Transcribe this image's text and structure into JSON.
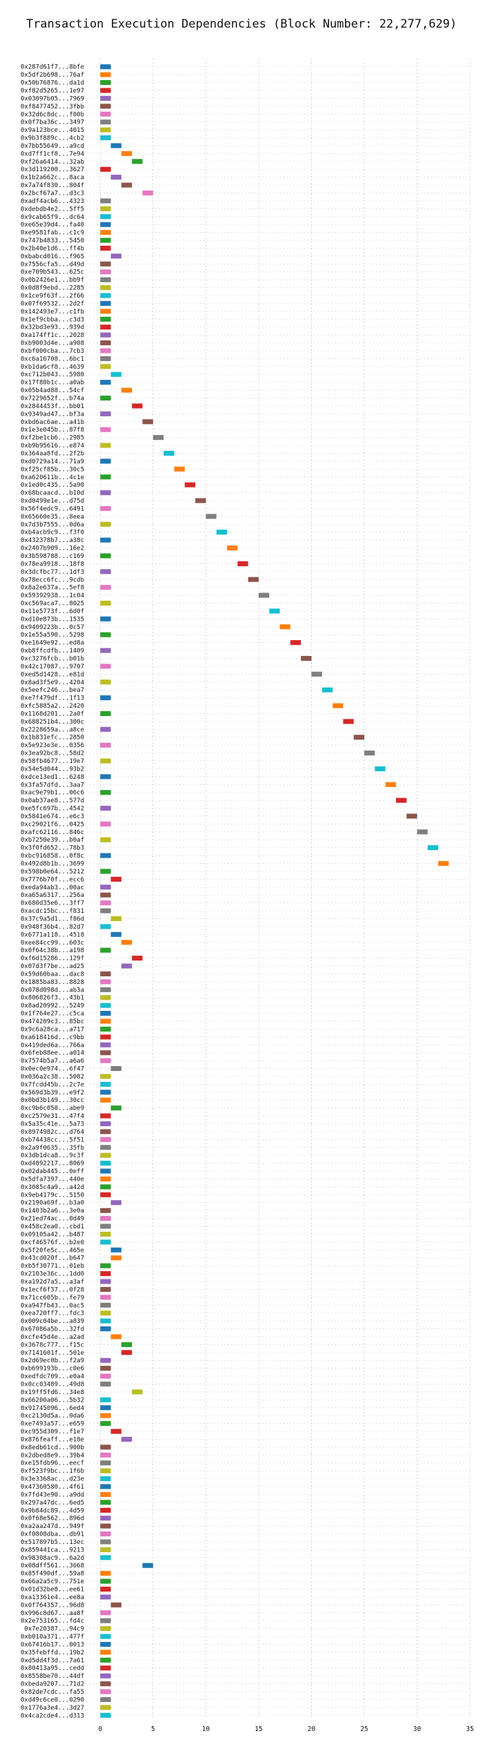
{
  "chart_data": {
    "type": "gantt",
    "title": "Transaction Execution Dependencies (Block Number: 22,277,629)",
    "xlabel": "",
    "ylabel": "",
    "xlim": [
      -1,
      35
    ],
    "xticks": [
      0,
      5,
      10,
      15,
      20,
      25,
      30,
      35
    ],
    "grid": true,
    "grid_style": "dotted",
    "bar_duration": 1,
    "palette": [
      "#1f77b4",
      "#ff7f0e",
      "#2ca02c",
      "#d62728",
      "#9467bd",
      "#8c564b",
      "#e377c2",
      "#7f7f7f",
      "#bcbd22",
      "#17becf"
    ],
    "transactions": [
      {
        "label": "0x287d61f7...8bfe",
        "start": 0
      },
      {
        "label": "0x5df2b698...76af",
        "start": 0
      },
      {
        "label": "0x50b76876...da1d",
        "start": 0
      },
      {
        "label": "0xf82d5265...1e97",
        "start": 0
      },
      {
        "label": "0x03097b05...7969",
        "start": 0
      },
      {
        "label": "0xf8477452...3fbb",
        "start": 0
      },
      {
        "label": "0x32d6c8dc...f00b",
        "start": 0
      },
      {
        "label": "0x0f7ba36c...3497",
        "start": 0
      },
      {
        "label": "0x9a123bce...4015",
        "start": 0
      },
      {
        "label": "0x9b3f889c...4cb2",
        "start": 0
      },
      {
        "label": "0x7bb55649...a9cd",
        "start": 1
      },
      {
        "label": "0xd7ff1cf8...7e94",
        "start": 2
      },
      {
        "label": "0xf26a6414...32ab",
        "start": 3
      },
      {
        "label": "0x3d119200...3627",
        "start": 0
      },
      {
        "label": "0x1b2a662c...8aca",
        "start": 1
      },
      {
        "label": "0x7a74f830...804f",
        "start": 2
      },
      {
        "label": "0x2bcf67a7...d3c3",
        "start": 4
      },
      {
        "label": "0xadf4acb6...4323",
        "start": 0
      },
      {
        "label": "0xdebdb4e2...5ff5",
        "start": 0
      },
      {
        "label": "0x9cab65f9...dc64",
        "start": 0
      },
      {
        "label": "0xe65e39d4...fa40",
        "start": 0
      },
      {
        "label": "0xe9581fab...c1c9",
        "start": 0
      },
      {
        "label": "0x747b4833...5450",
        "start": 0
      },
      {
        "label": "0x2b40e1d6...ff4b",
        "start": 0
      },
      {
        "label": "0xbabcd016...f965",
        "start": 1
      },
      {
        "label": "0x7556cfa5...d49d",
        "start": 0
      },
      {
        "label": "0xe709b543...625c",
        "start": 0
      },
      {
        "label": "0x0b2426e1...bb9f",
        "start": 0
      },
      {
        "label": "0x0d8f9ebd...2285",
        "start": 0
      },
      {
        "label": "0x1ce9f63f...2f66",
        "start": 0
      },
      {
        "label": "0x07f69532...2d2f",
        "start": 0
      },
      {
        "label": "0x142493e7...c1fb",
        "start": 0
      },
      {
        "label": "0x1ef9cbba...c3d3",
        "start": 0
      },
      {
        "label": "0x32bd3e93...939d",
        "start": 0
      },
      {
        "label": "0xa174ff1c...2028",
        "start": 0
      },
      {
        "label": "0xb9003d4e...a908",
        "start": 0
      },
      {
        "label": "0xbf000cba...7cb3",
        "start": 0
      },
      {
        "label": "0xc6a16708...6bc1",
        "start": 0
      },
      {
        "label": "0xb1da6cf8...4639",
        "start": 0
      },
      {
        "label": "0xc712b043...5980",
        "start": 1
      },
      {
        "label": "0x17f80b1c...a0ab",
        "start": 0
      },
      {
        "label": "0x05b4ad88...54cf",
        "start": 2
      },
      {
        "label": "0x7229652f...b74a",
        "start": 0
      },
      {
        "label": "0x2844453f...bb01",
        "start": 3
      },
      {
        "label": "0x9349ad47...bf3a",
        "start": 0
      },
      {
        "label": "0xbd6ac6ae...a41b",
        "start": 4
      },
      {
        "label": "0x1e3e045b...87f8",
        "start": 0
      },
      {
        "label": "0xf2be1cb6...2985",
        "start": 5
      },
      {
        "label": "0xb9b95616...e874",
        "start": 0
      },
      {
        "label": "0x364aa8fd...2f2b",
        "start": 6
      },
      {
        "label": "0xd0729a14...71a9",
        "start": 0
      },
      {
        "label": "0xf25cf85b...30c5",
        "start": 7
      },
      {
        "label": "0xa620611b...4c1e",
        "start": 0
      },
      {
        "label": "0x1ed0c435...5a90",
        "start": 8
      },
      {
        "label": "0x68bcaacd...b10d",
        "start": 0
      },
      {
        "label": "0xd0499e1e...d75d",
        "start": 9
      },
      {
        "label": "0x56f4edc9...6491",
        "start": 0
      },
      {
        "label": "0x65660e35...8eea",
        "start": 10
      },
      {
        "label": "0x7d3b7555...0d6a",
        "start": 0
      },
      {
        "label": "0xb4acb9c9...f3f0",
        "start": 11
      },
      {
        "label": "0x432378b7...a38c",
        "start": 0
      },
      {
        "label": "0x2407b909...16e2",
        "start": 12
      },
      {
        "label": "0x3b598788...c169",
        "start": 0
      },
      {
        "label": "0x78ea9918...18f8",
        "start": 13
      },
      {
        "label": "0x3dcfbc77...1df3",
        "start": 0
      },
      {
        "label": "0x78ecc6fc...9cdb",
        "start": 14
      },
      {
        "label": "0x8a2e637a...5ef8",
        "start": 0
      },
      {
        "label": "0x59392938...1c04",
        "start": 15
      },
      {
        "label": "0xc569aca7...8025",
        "start": 0
      },
      {
        "label": "0x11e5773f...6d0f",
        "start": 16
      },
      {
        "label": "0xd10e873b...1535",
        "start": 0
      },
      {
        "label": "0x9409223b...0c57",
        "start": 17
      },
      {
        "label": "0x1e55a590...5298",
        "start": 0
      },
      {
        "label": "0xe1649e92...ed8a",
        "start": 18
      },
      {
        "label": "0xb8ffcdfb...1409",
        "start": 0
      },
      {
        "label": "0xc3276fcb...b01b",
        "start": 19
      },
      {
        "label": "0x42c17087...9707",
        "start": 0
      },
      {
        "label": "0xed5d1428...e81d",
        "start": 20
      },
      {
        "label": "0x8ad3f5e9...4204",
        "start": 0
      },
      {
        "label": "0x5eefc246...bea7",
        "start": 21
      },
      {
        "label": "0xe7f479df...1f13",
        "start": 0
      },
      {
        "label": "0xfc5885a2...2420",
        "start": 22
      },
      {
        "label": "0x1168d201...2a0f",
        "start": 0
      },
      {
        "label": "0x688251b4...300c",
        "start": 23
      },
      {
        "label": "0x2228659a...a8ce",
        "start": 0
      },
      {
        "label": "0x1b831efc...2850",
        "start": 24
      },
      {
        "label": "0x5e923e3e...0356",
        "start": 0
      },
      {
        "label": "0x3ea92bc8...58d2",
        "start": 25
      },
      {
        "label": "0x58fb4677...19e7",
        "start": 0
      },
      {
        "label": "0x54e5d044...93b2",
        "start": 26
      },
      {
        "label": "0xdce13ed1...6248",
        "start": 0
      },
      {
        "label": "0x3fa57dfd...3aa7",
        "start": 27
      },
      {
        "label": "0xac9e79b1...06c6",
        "start": 0
      },
      {
        "label": "0x0ab37ae8...577d",
        "start": 28
      },
      {
        "label": "0xe5fc697b...4542",
        "start": 0
      },
      {
        "label": "0x5841e674...e6c3",
        "start": 29
      },
      {
        "label": "0xc29021f6...0425",
        "start": 0
      },
      {
        "label": "0xafc62116...846c",
        "start": 30
      },
      {
        "label": "0xb7250e39...b0af",
        "start": 0
      },
      {
        "label": "0x3f0fd652...78b3",
        "start": 31
      },
      {
        "label": "0xbc916858...0f8c",
        "start": 0
      },
      {
        "label": "0x492d8b1b...3699",
        "start": 32
      },
      {
        "label": "0x598b0e64...5212",
        "start": 0
      },
      {
        "label": "0x7776b70f...ecc6",
        "start": 1
      },
      {
        "label": "0xeda94ab3...00ac",
        "start": 0
      },
      {
        "label": "0xa65a6317...256a",
        "start": 0
      },
      {
        "label": "0x680d35e6...3ff7",
        "start": 0
      },
      {
        "label": "0xacdc15bc...f831",
        "start": 0
      },
      {
        "label": "0x37c9a5d1...f86d",
        "start": 1
      },
      {
        "label": "0x948f36b4...82d7",
        "start": 0
      },
      {
        "label": "0x6771a118...4518",
        "start": 1
      },
      {
        "label": "0xee84cc99...603c",
        "start": 2
      },
      {
        "label": "0x0f64c38b...a198",
        "start": 0
      },
      {
        "label": "0xf6d15286...129f",
        "start": 3
      },
      {
        "label": "0x07d3f7be...ad25",
        "start": 2
      },
      {
        "label": "0x59d60baa...dac8",
        "start": 0
      },
      {
        "label": "0x1885ba83...8828",
        "start": 0
      },
      {
        "label": "0x078d098d...ab3a",
        "start": 0
      },
      {
        "label": "0x806826f3...43b1",
        "start": 0
      },
      {
        "label": "0x8ad20992...5249",
        "start": 0
      },
      {
        "label": "0x1f764e27...c5ca",
        "start": 0
      },
      {
        "label": "0x474209c3...85bc",
        "start": 0
      },
      {
        "label": "0x9c6a28ca...a717",
        "start": 0
      },
      {
        "label": "0xa618416d...c9bb",
        "start": 0
      },
      {
        "label": "0x419ded6a...766a",
        "start": 0
      },
      {
        "label": "0x6feb88ee...a014",
        "start": 0
      },
      {
        "label": "0x7574b5a7...a6a6",
        "start": 0
      },
      {
        "label": "0x0ec0e974...6f47",
        "start": 1
      },
      {
        "label": "0x036a2c38...5082",
        "start": 0
      },
      {
        "label": "0x7fcdd45b...2c7e",
        "start": 0
      },
      {
        "label": "0x569d3b39...e9f2",
        "start": 0
      },
      {
        "label": "0x0bd3b149...30cc",
        "start": 0
      },
      {
        "label": "0xc9b6c050...abe9",
        "start": 1
      },
      {
        "label": "0xc2579e31...47f4",
        "start": 0
      },
      {
        "label": "0x5a35c41e...5a73",
        "start": 0
      },
      {
        "label": "0x8974982c...d764",
        "start": 0
      },
      {
        "label": "0xb74438cc...5f51",
        "start": 0
      },
      {
        "label": "0x2a9f0635...35fb",
        "start": 0
      },
      {
        "label": "0x3db1dca8...9c3f",
        "start": 0
      },
      {
        "label": "0xd4892217...8069",
        "start": 0
      },
      {
        "label": "0x02dab445...0eff",
        "start": 0
      },
      {
        "label": "0x5dfa7397...440e",
        "start": 0
      },
      {
        "label": "0x3085c4a9...a42d",
        "start": 0
      },
      {
        "label": "0x9eb4179c...5150",
        "start": 0
      },
      {
        "label": "0x2190a69f...b3a0",
        "start": 1
      },
      {
        "label": "0x1403b2a6...3e0a",
        "start": 0
      },
      {
        "label": "0x21ed74ac...0d49",
        "start": 0
      },
      {
        "label": "0x458c2ea0...cbd1",
        "start": 0
      },
      {
        "label": "0x09105a42...b487",
        "start": 0
      },
      {
        "label": "0xcf46576f...b2e0",
        "start": 0
      },
      {
        "label": "0x5f20fe5c...465e",
        "start": 1
      },
      {
        "label": "0x43cd020f...b647",
        "start": 1
      },
      {
        "label": "0xb5f30771...01eb",
        "start": 0
      },
      {
        "label": "0x2103e36c...1dd0",
        "start": 0
      },
      {
        "label": "0xa192d7a5...a3af",
        "start": 0
      },
      {
        "label": "0x1ecf6f37...0f28",
        "start": 0
      },
      {
        "label": "0x71cc605b...fe79",
        "start": 0
      },
      {
        "label": "0xa947fb43...0ac5",
        "start": 0
      },
      {
        "label": "0xea720ff7...fdc3",
        "start": 0
      },
      {
        "label": "0x009c04be...a839",
        "start": 0
      },
      {
        "label": "0x67086a5b...32fd",
        "start": 0
      },
      {
        "label": "0xcfe45d4e...a2ad",
        "start": 1
      },
      {
        "label": "0x3678c777...f15c",
        "start": 2
      },
      {
        "label": "0x7141601f...501e",
        "start": 2
      },
      {
        "label": "0x2d69ec0b...f2a9",
        "start": 0
      },
      {
        "label": "0xb699193b...c0e6",
        "start": 0
      },
      {
        "label": "0xedfdc709...e0a4",
        "start": 0
      },
      {
        "label": "0x0cc03489...49d8",
        "start": 0
      },
      {
        "label": "0x19ff5fd6...34e8",
        "start": 3
      },
      {
        "label": "0x66200a06...5b32",
        "start": 0
      },
      {
        "label": "0x91745096...6ed4",
        "start": 0
      },
      {
        "label": "0xc2130d5a...0da6",
        "start": 0
      },
      {
        "label": "0xe7493a57...e659",
        "start": 0
      },
      {
        "label": "0xc955d309...f1e7",
        "start": 1
      },
      {
        "label": "0x876feaff...e18e",
        "start": 2
      },
      {
        "label": "0x8edb61cd...900b",
        "start": 0
      },
      {
        "label": "0x2dbed8e9...39b4",
        "start": 0
      },
      {
        "label": "0xe15fdb96...eecf",
        "start": 0
      },
      {
        "label": "0xf523f9bc...1f6b",
        "start": 0
      },
      {
        "label": "0x3e3368ac...d23e",
        "start": 0
      },
      {
        "label": "0x47360580...4f61",
        "start": 0
      },
      {
        "label": "0x7fd43e90...a9dd",
        "start": 0
      },
      {
        "label": "0x297a47dc...6ed5",
        "start": 0
      },
      {
        "label": "0x9b84dc89...4d59",
        "start": 0
      },
      {
        "label": "0x0f68e562...896d",
        "start": 0
      },
      {
        "label": "0xa2aa247d...949f",
        "start": 0
      },
      {
        "label": "0xf0808dba...db91",
        "start": 0
      },
      {
        "label": "0x517897b5...13ec",
        "start": 0
      },
      {
        "label": "0x859441ca...9213",
        "start": 0
      },
      {
        "label": "0x98308ac9...6a2d",
        "start": 0
      },
      {
        "label": "0x08dff561...3668",
        "start": 4
      },
      {
        "label": "0x85f490df...59a8",
        "start": 0
      },
      {
        "label": "0x66a2a5c9...751e",
        "start": 0
      },
      {
        "label": "0x01d32be8...ee61",
        "start": 0
      },
      {
        "label": "0xa13361e4...ee8a",
        "start": 0
      },
      {
        "label": "0x0f764357...96d8",
        "start": 1
      },
      {
        "label": "0x996c8d67...aa8f",
        "start": 0
      },
      {
        "label": "0x2e753165...fd4c",
        "start": 0
      },
      {
        "label": "0x7e20387...94c9",
        "start": 0
      },
      {
        "label": "0xb010a371...477f",
        "start": 0
      },
      {
        "label": "0x67416b17...0013",
        "start": 0
      },
      {
        "label": "0x35febffd...19b2",
        "start": 0
      },
      {
        "label": "0xd5dd4f3d...7a61",
        "start": 0
      },
      {
        "label": "0x80413a95...cedd",
        "start": 0
      },
      {
        "label": "0x8558be70...44df",
        "start": 0
      },
      {
        "label": "0xbeda9207...71d2",
        "start": 0
      },
      {
        "label": "0x82de7cdc...fa55",
        "start": 0
      },
      {
        "label": "0xd49c6ce0...0290",
        "start": 0
      },
      {
        "label": "0x1776a3e4...3d27",
        "start": 0
      },
      {
        "label": "0x4ca2cde4...d313",
        "start": 0
      }
    ]
  }
}
